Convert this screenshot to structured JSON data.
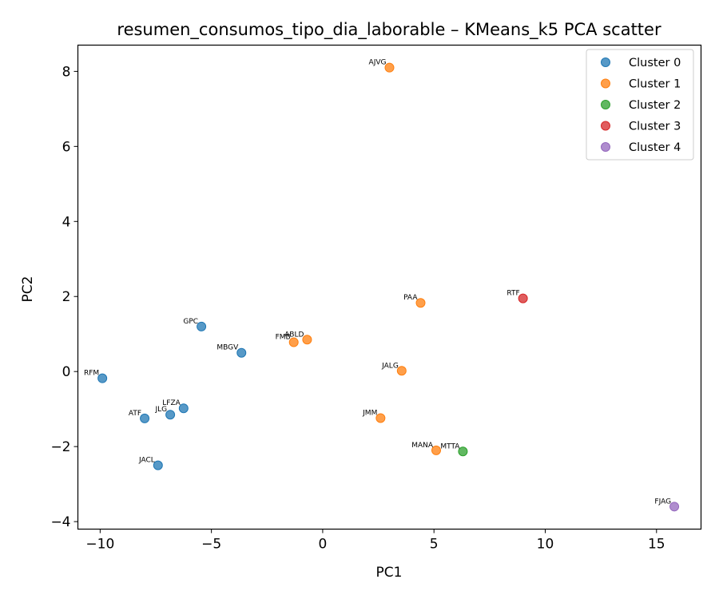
{
  "chart_data": {
    "type": "scatter",
    "title": "resumen_consumos_tipo_dia_laborable – KMeans_k5 PCA scatter",
    "xlabel": "PC1",
    "ylabel": "PC2",
    "xlim": [
      -11.0,
      17.0
    ],
    "ylim": [
      -4.2,
      8.7
    ],
    "xticks": [
      -10,
      -5,
      0,
      5,
      10,
      15
    ],
    "yticks": [
      -4,
      -2,
      0,
      2,
      4,
      6,
      8
    ],
    "xtick_labels": [
      "−10",
      "−5",
      "0",
      "5",
      "10",
      "15"
    ],
    "ytick_labels": [
      "−4",
      "−2",
      "0",
      "2",
      "4",
      "6",
      "8"
    ],
    "grid": false,
    "legend_position": "top-right",
    "series": [
      {
        "name": "Cluster 0",
        "color": "#1f77b4",
        "points": [
          {
            "label": "RFM",
            "x": -9.9,
            "y": -0.18
          },
          {
            "label": "ATF",
            "x": -8.0,
            "y": -1.25
          },
          {
            "label": "JLG",
            "x": -6.85,
            "y": -1.15
          },
          {
            "label": "LFZA",
            "x": -6.25,
            "y": -0.98
          },
          {
            "label": "JACL",
            "x": -7.4,
            "y": -2.5
          },
          {
            "label": "GPC",
            "x": -5.45,
            "y": 1.2
          },
          {
            "label": "MBGV",
            "x": -3.65,
            "y": 0.5
          }
        ]
      },
      {
        "name": "Cluster 1",
        "color": "#ff7f0e",
        "points": [
          {
            "label": "AJVG",
            "x": 3.0,
            "y": 8.1
          },
          {
            "label": "FMB",
            "x": -1.3,
            "y": 0.78
          },
          {
            "label": "ABLD",
            "x": -0.7,
            "y": 0.85
          },
          {
            "label": "PAA",
            "x": 4.4,
            "y": 1.83
          },
          {
            "label": "JALG",
            "x": 3.55,
            "y": 0.02
          },
          {
            "label": "JMM",
            "x": 2.6,
            "y": -1.24
          },
          {
            "label": "MANA",
            "x": 5.1,
            "y": -2.1
          }
        ]
      },
      {
        "name": "Cluster 2",
        "color": "#2ca02c",
        "points": [
          {
            "label": "MTTA",
            "x": 6.3,
            "y": -2.13
          }
        ]
      },
      {
        "name": "Cluster 3",
        "color": "#d62728",
        "points": [
          {
            "label": "RTF",
            "x": 9.0,
            "y": 1.95
          }
        ]
      },
      {
        "name": "Cluster 4",
        "color": "#9467bd",
        "points": [
          {
            "label": "FJAG",
            "x": 15.8,
            "y": -3.6
          }
        ]
      }
    ]
  }
}
